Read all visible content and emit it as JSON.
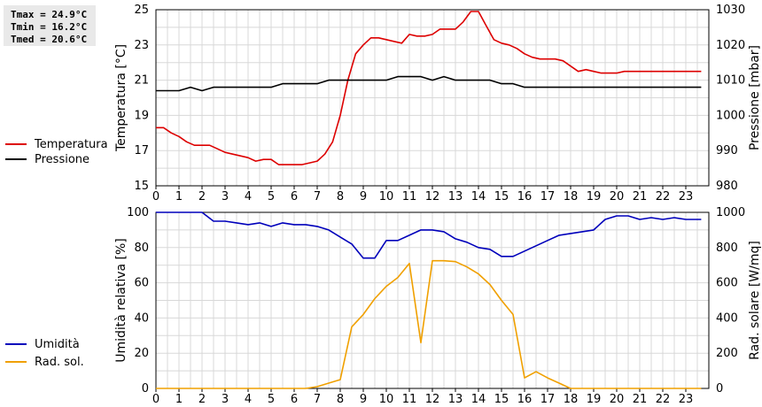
{
  "stats": {
    "tmax": "Tmax = 24.9°C",
    "tmin": "Tmin = 16.2°C",
    "tmed": "Tmed = 20.6°C"
  },
  "colors": {
    "temperature": "#dd0000",
    "pressure": "#000000",
    "humidity": "#0000bb",
    "radiation": "#f0a000",
    "grid": "#d8d8d8"
  },
  "chart_data": [
    {
      "type": "line",
      "x_ticks": [
        "0",
        "1",
        "2",
        "3",
        "4",
        "5",
        "6",
        "7",
        "8",
        "9",
        "10",
        "11",
        "12",
        "13",
        "14",
        "15",
        "16",
        "17",
        "18",
        "19",
        "20",
        "21",
        "22",
        "23"
      ],
      "xlim": [
        0,
        24
      ],
      "ylabel": "Temperatura [°C]",
      "ylim": [
        15,
        25
      ],
      "y_ticks": [
        "15",
        "17",
        "19",
        "21",
        "23",
        "25"
      ],
      "y2label": "Pressione [mbar]",
      "y2lim": [
        980,
        1030
      ],
      "y2_ticks": [
        "980",
        "990",
        "1000",
        "1010",
        "1020",
        "1030"
      ],
      "grid": true,
      "series": [
        {
          "name": "Temperatura",
          "axis": "left",
          "color": "#dd0000",
          "x": [
            0,
            0.33,
            0.67,
            1,
            1.33,
            1.67,
            2,
            2.33,
            2.67,
            3,
            3.33,
            3.67,
            4,
            4.33,
            4.67,
            5,
            5.33,
            5.67,
            6,
            6.33,
            6.67,
            7,
            7.33,
            7.67,
            8,
            8.33,
            8.67,
            9,
            9.33,
            9.67,
            10,
            10.33,
            10.67,
            11,
            11.33,
            11.67,
            12,
            12.33,
            12.67,
            13,
            13.33,
            13.67,
            14,
            14.33,
            14.67,
            15,
            15.33,
            15.67,
            16,
            16.33,
            16.67,
            17,
            17.33,
            17.67,
            18,
            18.33,
            18.67,
            19,
            19.33,
            19.67,
            20,
            20.33,
            20.67,
            21,
            21.33,
            21.67,
            22,
            22.33,
            22.67,
            23,
            23.33,
            23.67
          ],
          "values": [
            18.3,
            18.3,
            18.0,
            17.8,
            17.5,
            17.3,
            17.3,
            17.3,
            17.1,
            16.9,
            16.8,
            16.7,
            16.6,
            16.4,
            16.5,
            16.5,
            16.2,
            16.2,
            16.2,
            16.2,
            16.3,
            16.4,
            16.8,
            17.5,
            19.0,
            21.0,
            22.5,
            23.0,
            23.4,
            23.4,
            23.3,
            23.2,
            23.1,
            23.6,
            23.5,
            23.5,
            23.6,
            23.9,
            23.9,
            23.9,
            24.3,
            24.9,
            24.9,
            24.1,
            23.3,
            23.1,
            23.0,
            22.8,
            22.5,
            22.3,
            22.2,
            22.2,
            22.2,
            22.1,
            21.8,
            21.5,
            21.6,
            21.5,
            21.4,
            21.4,
            21.4,
            21.5,
            21.5,
            21.5,
            21.5,
            21.5,
            21.5,
            21.5,
            21.5,
            21.5,
            21.5,
            21.5
          ]
        },
        {
          "name": "Pressione",
          "axis": "right",
          "color": "#000000",
          "x": [
            0,
            1,
            1.5,
            2,
            2.5,
            3,
            3.5,
            4,
            4.5,
            5,
            5.5,
            6,
            6.5,
            7,
            7.5,
            8,
            8.5,
            9,
            9.5,
            10,
            10.5,
            11,
            11.5,
            12,
            12.5,
            13,
            13.5,
            14,
            14.5,
            15,
            15.5,
            16,
            16.5,
            17,
            17.5,
            18,
            18.5,
            19,
            19.5,
            20,
            20.5,
            21,
            21.5,
            22,
            22.5,
            23,
            23.67
          ],
          "values": [
            1007,
            1007,
            1008,
            1007,
            1008,
            1008,
            1008,
            1008,
            1008,
            1008,
            1009,
            1009,
            1009,
            1009,
            1010,
            1010,
            1010,
            1010,
            1010,
            1010,
            1011,
            1011,
            1011,
            1010,
            1011,
            1010,
            1010,
            1010,
            1010,
            1009,
            1009,
            1008,
            1008,
            1008,
            1008,
            1008,
            1008,
            1008,
            1008,
            1008,
            1008,
            1008,
            1008,
            1008,
            1008,
            1008,
            1008
          ]
        }
      ],
      "legend": [
        "Temperatura",
        "Pressione"
      ],
      "legend_position": "left"
    },
    {
      "type": "line",
      "x_ticks": [
        "0",
        "1",
        "2",
        "3",
        "4",
        "5",
        "6",
        "7",
        "8",
        "9",
        "10",
        "11",
        "12",
        "13",
        "14",
        "15",
        "16",
        "17",
        "18",
        "19",
        "20",
        "21",
        "22",
        "23"
      ],
      "xlim": [
        0,
        24
      ],
      "ylabel": "Umidità relativa [%]",
      "ylim": [
        0,
        100
      ],
      "y_ticks": [
        "0",
        "20",
        "40",
        "60",
        "80",
        "100"
      ],
      "y2label": "Rad. solare [W/mq]",
      "y2lim": [
        0,
        1000
      ],
      "y2_ticks": [
        "0",
        "200",
        "400",
        "600",
        "800",
        "1000"
      ],
      "grid": true,
      "series": [
        {
          "name": "Umidità",
          "axis": "left",
          "color": "#0000bb",
          "x": [
            0,
            0.5,
            1,
            1.5,
            2,
            2.5,
            3,
            3.5,
            4,
            4.5,
            5,
            5.5,
            6,
            6.5,
            7,
            7.5,
            8,
            8.5,
            9,
            9.5,
            10,
            10.5,
            11,
            11.5,
            12,
            12.5,
            13,
            13.5,
            14,
            14.5,
            15,
            15.5,
            16,
            16.5,
            17,
            17.5,
            18,
            18.5,
            19,
            19.5,
            20,
            20.5,
            21,
            21.5,
            22,
            22.5,
            23,
            23.67
          ],
          "values": [
            100,
            100,
            100,
            100,
            100,
            95,
            95,
            94,
            93,
            94,
            92,
            94,
            93,
            93,
            92,
            90,
            86,
            82,
            74,
            74,
            84,
            84,
            87,
            90,
            90,
            89,
            85,
            83,
            80,
            79,
            75,
            75,
            78,
            81,
            84,
            87,
            88,
            89,
            90,
            96,
            98,
            98,
            96,
            97,
            96,
            97,
            96,
            96
          ]
        },
        {
          "name": "Rad. sol.",
          "axis": "right",
          "color": "#f0a000",
          "x": [
            0,
            1,
            2,
            3,
            4,
            5,
            6,
            6.5,
            7,
            7.5,
            8,
            8.5,
            9,
            9.5,
            10,
            10.5,
            11,
            11.5,
            12,
            12.5,
            13,
            13.5,
            14,
            14.5,
            15,
            15.5,
            16,
            16.5,
            17,
            17.5,
            18,
            18.5,
            19,
            20,
            21,
            22,
            23,
            23.67
          ],
          "values": [
            0,
            0,
            0,
            0,
            0,
            0,
            0,
            0,
            10,
            30,
            50,
            350,
            420,
            510,
            580,
            630,
            710,
            260,
            725,
            725,
            720,
            690,
            650,
            590,
            500,
            420,
            60,
            95,
            60,
            30,
            0,
            0,
            0,
            0,
            0,
            0,
            0,
            0
          ]
        }
      ],
      "legend": [
        "Umidità",
        "Rad. sol."
      ],
      "legend_position": "left"
    }
  ]
}
